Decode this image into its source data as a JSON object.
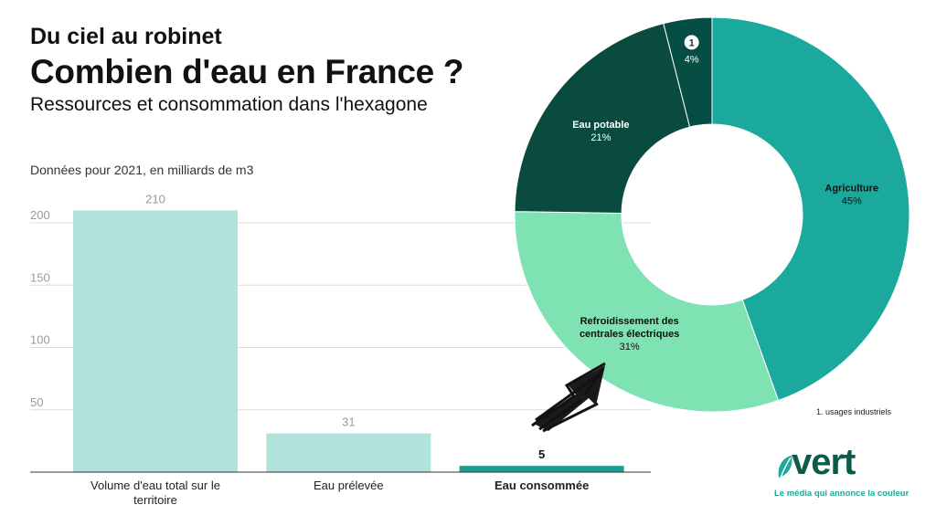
{
  "header": {
    "kicker": "Du ciel au robinet",
    "title": "Combien d'eau en France ?",
    "subtitle": "Ressources et consommation dans l'hexagone",
    "note": "Données pour 2021, en milliards de m3"
  },
  "footnote": "1. usages industriels",
  "logo": {
    "word": "vert",
    "tagline": "Le média qui annonce la couleur"
  },
  "colors": {
    "bar_light": "#b1e3dc",
    "bar_dark": "#1a9f92",
    "agriculture": "#1aa99c",
    "refroidissement": "#7ee2b3",
    "eau_potable": "#094c3f",
    "industrie": "#064d43",
    "grid": "#dddddd"
  },
  "chart_data": [
    {
      "type": "bar",
      "categories": [
        "Volume d'eau total sur le territoire",
        "Eau prélevée",
        "Eau consommée"
      ],
      "category_lines": [
        [
          "Volume d'eau total sur le",
          "territoire"
        ],
        [
          "Eau prélevée"
        ],
        [
          "Eau consommée"
        ]
      ],
      "values": [
        210,
        31,
        5
      ],
      "value_labels": [
        "210",
        "31",
        "5"
      ],
      "highlight_index": 2,
      "yticks": [
        50,
        100,
        150,
        200
      ],
      "ylim": [
        0,
        220
      ],
      "grid": true
    },
    {
      "type": "pie",
      "donut": true,
      "slices": [
        {
          "lines": [
            "Agriculture"
          ],
          "value": 45,
          "pct": "45%",
          "color": "#1aa99c"
        },
        {
          "lines": [
            "Refroidissement des",
            "centrales électriques"
          ],
          "value": 31,
          "pct": "31%",
          "color": "#7ee2b3"
        },
        {
          "lines": [
            "Eau potable"
          ],
          "value": 21,
          "pct": "21%",
          "color": "#094c3f"
        },
        {
          "lines": [
            "1"
          ],
          "value": 4,
          "pct": "4%",
          "color": "#064d43",
          "badge": true
        }
      ]
    }
  ]
}
